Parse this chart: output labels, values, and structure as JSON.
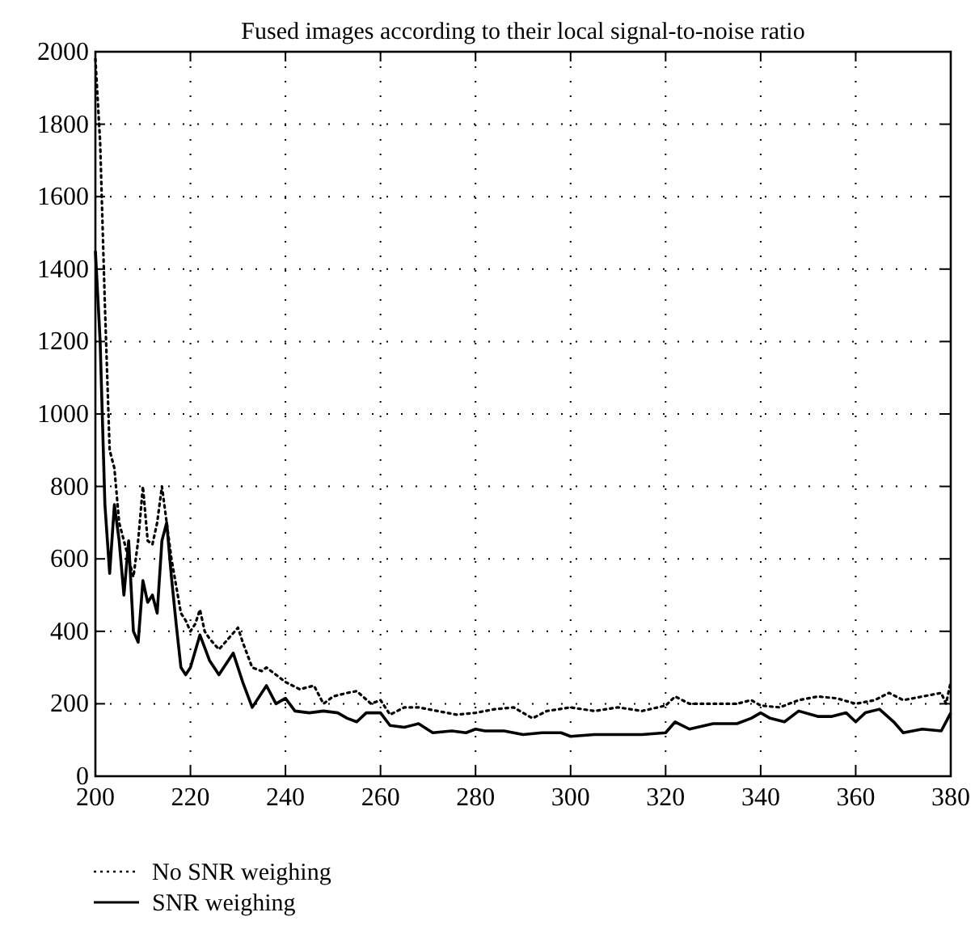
{
  "chart_data": {
    "type": "line",
    "title": "Fused images according to their local signal-to-noise ratio",
    "xlim": [
      200,
      380
    ],
    "xticks": [
      200,
      220,
      240,
      260,
      280,
      300,
      320,
      340,
      360,
      380
    ],
    "ylim": [
      0,
      2000
    ],
    "yticks": [
      0,
      200,
      400,
      600,
      800,
      1000,
      1200,
      1400,
      1600,
      1800,
      2000
    ],
    "grid": true,
    "legend": "bottom left",
    "series": [
      {
        "name": "No SNR weighing",
        "color": "#000000",
        "line_style": "dotted",
        "x": [
          200,
          201,
          202,
          203,
          204,
          205,
          206,
          207,
          208,
          209,
          210,
          211,
          212,
          213,
          214,
          215,
          216,
          218,
          219,
          220,
          221,
          222,
          223,
          224,
          226,
          228,
          230,
          231,
          233,
          235,
          236,
          238,
          240,
          243,
          246,
          248,
          250,
          253,
          255,
          258,
          260,
          262,
          265,
          268,
          272,
          276,
          280,
          284,
          288,
          292,
          295,
          300,
          305,
          310,
          315,
          320,
          322,
          325,
          330,
          335,
          338,
          340,
          344,
          348,
          352,
          356,
          360,
          364,
          367,
          370,
          374,
          378,
          379,
          380
        ],
        "values": [
          1980,
          1750,
          1300,
          900,
          850,
          700,
          650,
          600,
          550,
          650,
          800,
          650,
          640,
          700,
          800,
          700,
          600,
          450,
          430,
          400,
          420,
          460,
          400,
          380,
          350,
          380,
          410,
          370,
          300,
          290,
          300,
          280,
          260,
          240,
          250,
          200,
          220,
          230,
          235,
          200,
          210,
          170,
          190,
          190,
          180,
          170,
          175,
          185,
          190,
          160,
          180,
          190,
          180,
          190,
          180,
          195,
          220,
          200,
          200,
          200,
          210,
          195,
          190,
          210,
          220,
          215,
          200,
          210,
          230,
          210,
          220,
          230,
          200,
          260
        ]
      },
      {
        "name": "SNR weighing",
        "color": "#000000",
        "line_style": "solid",
        "x": [
          200,
          201,
          202,
          203,
          204,
          205,
          206,
          207,
          208,
          209,
          210,
          211,
          212,
          213,
          214,
          215,
          216,
          217,
          218,
          219,
          220,
          222,
          224,
          226,
          229,
          231,
          233,
          236,
          238,
          240,
          242,
          245,
          248,
          251,
          253,
          255,
          257,
          260,
          262,
          265,
          268,
          271,
          275,
          278,
          280,
          282,
          286,
          290,
          294,
          298,
          300,
          305,
          310,
          315,
          320,
          322,
          325,
          330,
          335,
          338,
          340,
          342,
          345,
          348,
          352,
          355,
          358,
          360,
          362,
          365,
          368,
          370,
          374,
          378,
          379,
          380
        ],
        "values": [
          1450,
          1200,
          750,
          560,
          750,
          650,
          500,
          650,
          400,
          370,
          540,
          480,
          500,
          450,
          650,
          700,
          550,
          420,
          300,
          280,
          300,
          390,
          320,
          280,
          340,
          260,
          190,
          250,
          200,
          215,
          180,
          175,
          180,
          175,
          160,
          150,
          175,
          175,
          140,
          135,
          145,
          120,
          125,
          120,
          130,
          125,
          125,
          115,
          120,
          120,
          110,
          115,
          115,
          115,
          120,
          150,
          130,
          145,
          145,
          160,
          175,
          160,
          150,
          180,
          165,
          165,
          175,
          150,
          175,
          185,
          150,
          120,
          130,
          125,
          150,
          175
        ]
      }
    ]
  }
}
